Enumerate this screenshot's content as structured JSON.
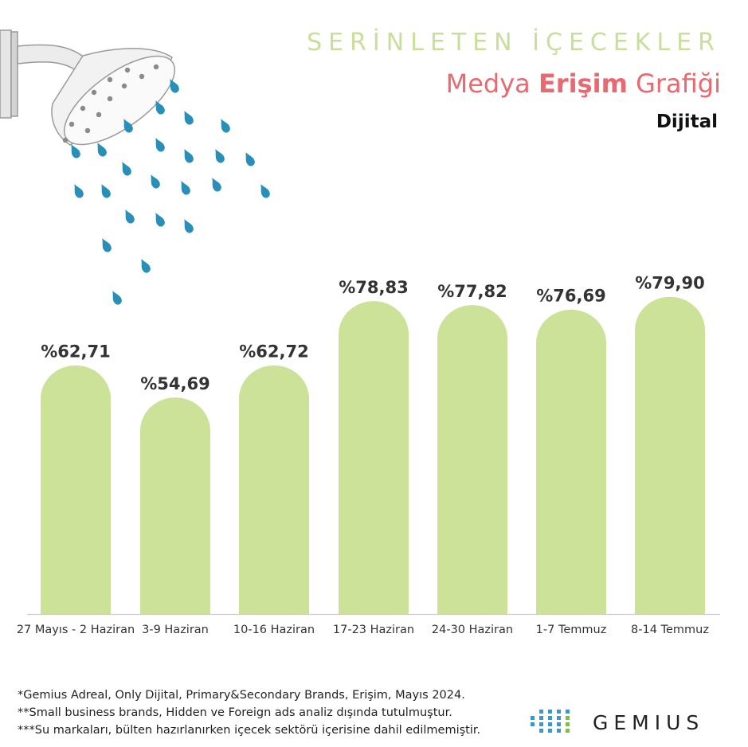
{
  "header": {
    "title_line1": "SERİNLETEN İÇECEKLER",
    "title_line2_prefix": "Medya ",
    "title_line2_bold": "Erişim",
    "title_line2_suffix": " Grafiği",
    "subtitle": "Dijital"
  },
  "colors": {
    "bar": "#cce299",
    "title_green": "#c8df9a",
    "title_red": "#e8696f",
    "drop_blue": "#2a8fb8",
    "axis": "#cccccc",
    "label_text": "#333333",
    "logo_dots": [
      "#2a9cd8",
      "#2a9cd8",
      "#2a9cd8",
      "#7cc242"
    ]
  },
  "chart_data": {
    "type": "bar",
    "categories": [
      "27 Mayıs - 2 Haziran",
      "3-9 Haziran",
      "10-16 Haziran",
      "17-23 Haziran",
      "24-30 Haziran",
      "1-7 Temmuz",
      "8-14 Temmuz"
    ],
    "values": [
      62.71,
      54.69,
      62.72,
      78.83,
      77.82,
      76.69,
      79.9
    ],
    "value_labels": [
      "%62,71",
      "%54,69",
      "%62,72",
      "%78,83",
      "%77,82",
      "%76,69",
      "%79,90"
    ],
    "ylim": [
      0,
      80
    ],
    "grid": false,
    "legend": "none"
  },
  "footnotes": [
    "*Gemius Adreal, Only Dijital, Primary&Secondary Brands, Erişim,  Mayıs 2024.",
    "**Small business brands, Hidden ve Foreign ads analiz dışında tutulmuştur.",
    "***Su markaları, bülten hazırlanırken içecek sektörü içerisine dahil edilmemiştir."
  ],
  "logo": {
    "text": "GEMIUS",
    "icon": "gemius-dots-icon"
  },
  "decoration": {
    "icon": "shower-head-icon"
  }
}
